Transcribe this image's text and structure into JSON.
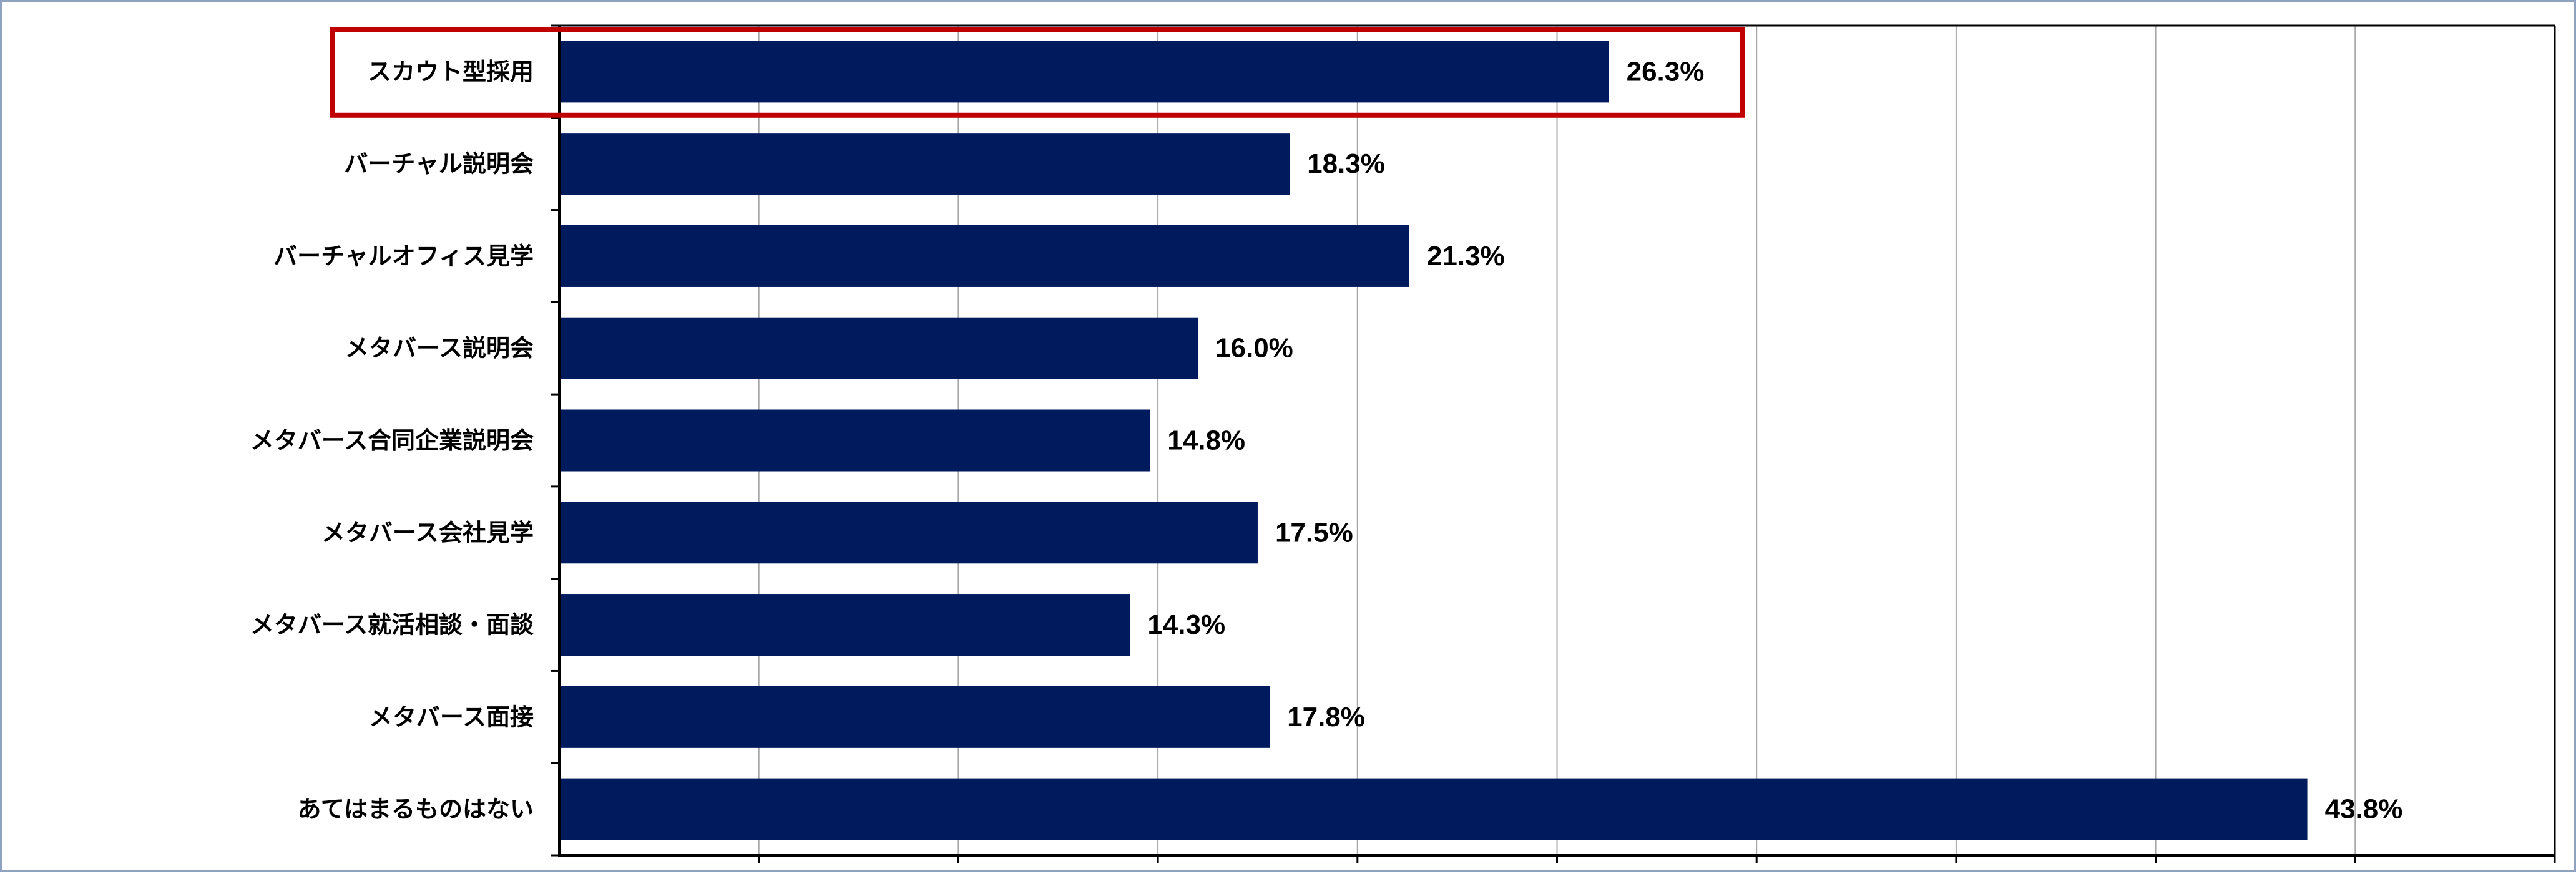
{
  "chart_data": {
    "type": "bar",
    "orientation": "horizontal",
    "categories": [
      "スカウト型採用",
      "バーチャル説明会",
      "バーチャルオフィス見学",
      "メタバース説明会",
      "メタバース合同企業説明会",
      "メタバース会社見学",
      "メタバース就活相談・面談",
      "メタバース面接",
      "あてはまるものはない"
    ],
    "values": [
      26.3,
      18.3,
      21.3,
      16.0,
      14.8,
      17.5,
      14.3,
      17.8,
      43.8
    ],
    "value_labels": [
      "26.3%",
      "18.3%",
      "21.3%",
      "16.0%",
      "14.8%",
      "17.5%",
      "14.3%",
      "17.8%",
      "43.8%"
    ],
    "xlim": [
      0,
      50
    ],
    "x_gridlines": [
      5,
      10,
      15,
      20,
      25,
      30,
      35,
      40,
      45
    ],
    "grid": true,
    "legend": "none",
    "highlighted_category": "スカウト型採用",
    "colors": {
      "bar": "#001a5e",
      "highlight_box": "#c00000",
      "gridline": "#a6a6a6",
      "axis": "#000000",
      "frame": "#8ea3bf"
    }
  }
}
